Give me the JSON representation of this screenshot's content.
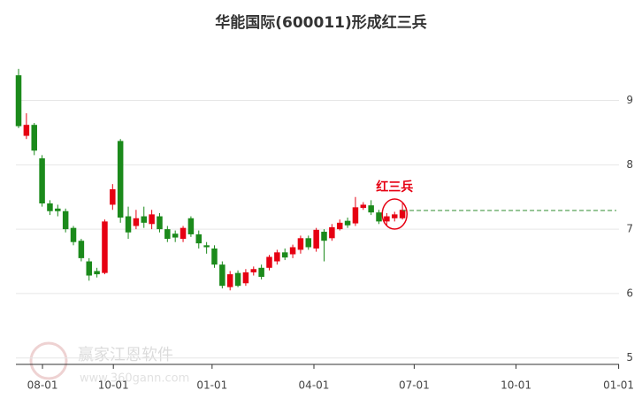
{
  "chart_data": {
    "type": "candlestick",
    "title": "华能国际(600011)形成红三兵",
    "annotation": "红三兵",
    "watermark": "赢家江恩软件",
    "watermark_url": "www.360gann.com",
    "up_color": "#e60012",
    "down_color": "#1b8a1b",
    "reference_line": {
      "value": 7.29,
      "color": "#2e8b2e"
    },
    "x": [
      0,
      1,
      2,
      3,
      4,
      5,
      6,
      7,
      8,
      9,
      10,
      11,
      12,
      13,
      14,
      15,
      16,
      17,
      18,
      19,
      20,
      21,
      22,
      23,
      24,
      25,
      26,
      27,
      28,
      29,
      30,
      31,
      32,
      33,
      34,
      35,
      36,
      37,
      38,
      39,
      40,
      41,
      42,
      43,
      44,
      45,
      46,
      47,
      48,
      49
    ],
    "open": [
      9.39,
      8.45,
      8.62,
      8.1,
      7.4,
      7.32,
      7.28,
      7.02,
      6.82,
      6.5,
      6.35,
      6.32,
      7.38,
      8.37,
      7.2,
      7.05,
      7.2,
      7.08,
      7.2,
      7.0,
      6.93,
      6.85,
      7.17,
      6.92,
      6.75,
      6.7,
      6.45,
      6.1,
      6.32,
      6.16,
      6.33,
      6.4,
      6.4,
      6.5,
      6.64,
      6.61,
      6.68,
      6.86,
      6.7,
      6.96,
      6.86,
      7.0,
      7.13,
      7.09,
      7.33,
      7.37,
      7.26,
      7.12,
      7.17,
      7.17
    ],
    "high": [
      9.49,
      8.8,
      8.65,
      8.15,
      7.45,
      7.38,
      7.32,
      7.05,
      6.85,
      6.55,
      6.4,
      7.15,
      7.7,
      8.4,
      7.35,
      7.3,
      7.35,
      7.3,
      7.25,
      7.05,
      6.98,
      7.05,
      7.2,
      6.98,
      6.8,
      6.75,
      6.5,
      6.35,
      6.36,
      6.38,
      6.42,
      6.45,
      6.6,
      6.68,
      6.7,
      6.76,
      6.9,
      6.9,
      7.02,
      7.0,
      7.08,
      7.15,
      7.18,
      7.5,
      7.42,
      7.45,
      7.3,
      7.25,
      7.27,
      7.42
    ],
    "low": [
      8.57,
      8.4,
      8.15,
      7.35,
      7.22,
      7.2,
      6.95,
      6.75,
      6.5,
      6.2,
      6.25,
      6.3,
      7.3,
      7.1,
      6.85,
      7.0,
      7.02,
      7.0,
      6.95,
      6.8,
      6.8,
      6.8,
      6.88,
      6.7,
      6.62,
      6.4,
      6.08,
      6.05,
      6.1,
      6.12,
      6.28,
      6.22,
      6.36,
      6.45,
      6.52,
      6.55,
      6.62,
      6.68,
      6.65,
      6.5,
      6.82,
      6.98,
      7.02,
      7.05,
      7.3,
      7.22,
      7.08,
      7.05,
      7.12,
      7.15
    ],
    "close": [
      8.6,
      8.62,
      8.22,
      7.4,
      7.28,
      7.28,
      7.0,
      6.8,
      6.55,
      6.28,
      6.3,
      7.12,
      7.62,
      7.18,
      6.95,
      7.17,
      7.1,
      7.23,
      7.0,
      6.85,
      6.87,
      7.02,
      6.92,
      6.78,
      6.72,
      6.45,
      6.12,
      6.3,
      6.12,
      6.33,
      6.38,
      6.26,
      6.57,
      6.64,
      6.56,
      6.72,
      6.86,
      6.72,
      6.99,
      6.82,
      7.03,
      7.1,
      7.06,
      7.34,
      7.38,
      7.26,
      7.12,
      7.2,
      7.23,
      7.3
    ],
    "xlim": [
      -0.34,
      78
    ],
    "xticks": [
      {
        "value": 3.05,
        "label": "08-01"
      },
      {
        "value": 12.1,
        "label": "10-01"
      },
      {
        "value": 24.7,
        "label": "01-01"
      },
      {
        "value": 37.7,
        "label": "04-01"
      },
      {
        "value": 50.5,
        "label": "07-01"
      },
      {
        "value": 63.5,
        "label": "10-01"
      },
      {
        "value": 76.6,
        "label": "01-01"
      }
    ],
    "ylim": [
      4.9,
      9.9
    ],
    "yticks": [
      5,
      6,
      7,
      8,
      9
    ],
    "grid": true
  }
}
